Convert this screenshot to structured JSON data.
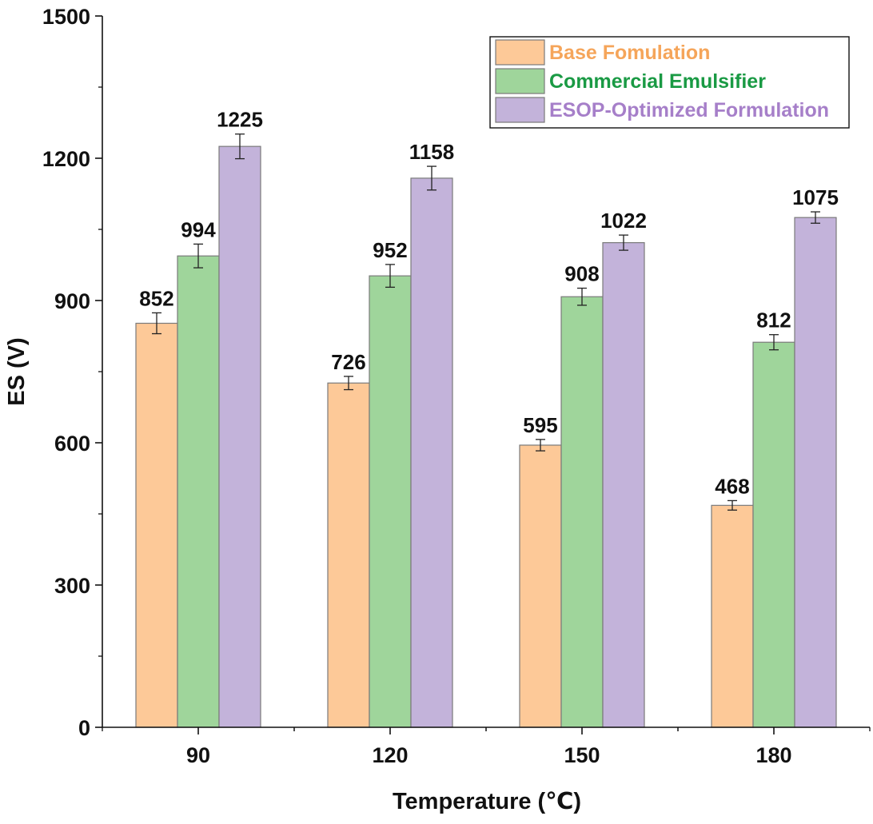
{
  "chart_data": {
    "type": "bar",
    "title": "",
    "xlabel": "Temperature (℃)",
    "ylabel": "ES (V)",
    "categories": [
      "90",
      "120",
      "150",
      "180"
    ],
    "ylim": [
      0,
      1500
    ],
    "yticks": [
      "0",
      "300",
      "600",
      "900",
      "1200",
      "1500"
    ],
    "legend_position": "top-right",
    "series": [
      {
        "name": "Base Fomulation",
        "color": "#fdc998",
        "text_color": "#f5a55a",
        "values": [
          852,
          726,
          595,
          468
        ],
        "labels": [
          "852",
          "726",
          "595",
          "468"
        ],
        "errors": [
          22,
          14,
          12,
          10
        ]
      },
      {
        "name": "Commercial Emulsifier",
        "color": "#9fd59b",
        "text_color": "#1a9a44",
        "values": [
          994,
          952,
          908,
          812
        ],
        "labels": [
          "994",
          "952",
          "908",
          "812"
        ],
        "errors": [
          25,
          24,
          18,
          16
        ]
      },
      {
        "name": "ESOP-Optimized Formulation",
        "color": "#c3b3da",
        "text_color": "#a67fc9",
        "values": [
          1225,
          1158,
          1022,
          1075
        ],
        "labels": [
          "1225",
          "1158",
          "1022",
          "1075"
        ],
        "errors": [
          26,
          25,
          16,
          12
        ]
      }
    ]
  }
}
